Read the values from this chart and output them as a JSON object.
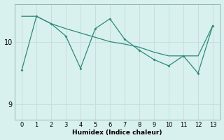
{
  "xlabel": "Humidex (Indice chaleur)",
  "x": [
    0,
    1,
    2,
    3,
    4,
    5,
    6,
    7,
    8,
    9,
    10,
    11,
    12,
    13
  ],
  "line1_y": [
    9.55,
    10.42,
    10.3,
    10.1,
    9.58,
    10.22,
    10.38,
    10.05,
    9.87,
    9.72,
    9.62,
    9.78,
    9.5,
    10.27
  ],
  "line2_y": [
    10.42,
    10.42,
    10.3,
    10.22,
    10.15,
    10.08,
    10.01,
    9.97,
    9.92,
    9.84,
    9.78,
    9.78,
    9.78,
    10.27
  ],
  "line_color": "#2e8b7a",
  "bg_color": "#d8f0ee",
  "grid_color": "#c8dede",
  "ylim": [
    8.75,
    10.62
  ],
  "yticks": [
    9,
    10
  ],
  "xlim": [
    -0.5,
    13.5
  ]
}
